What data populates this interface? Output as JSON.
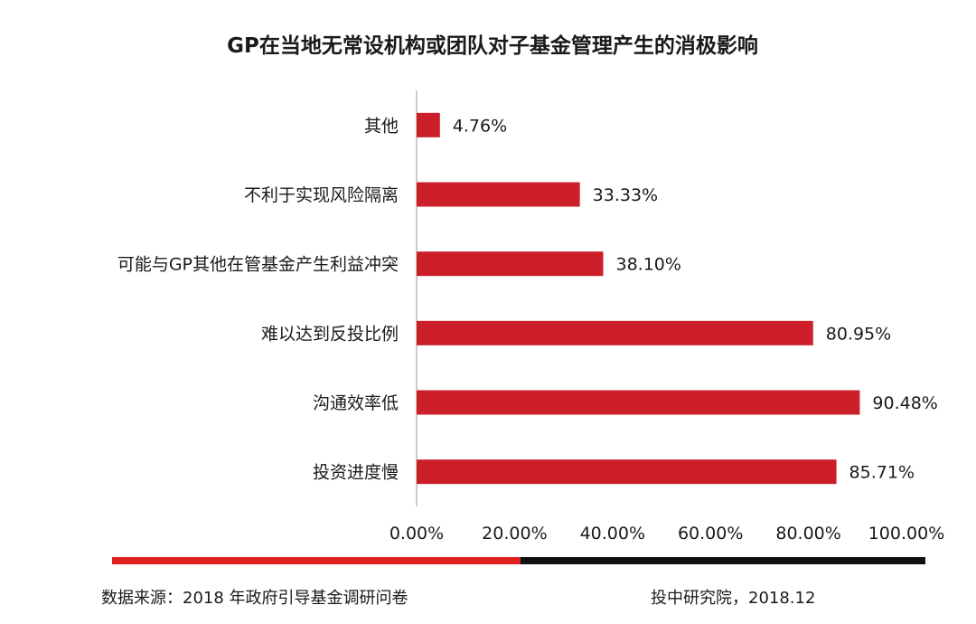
{
  "chart_data": {
    "type": "bar",
    "orientation": "horizontal",
    "title": "GP在当地无常设机构或团队对子基金管理产生的消极影响",
    "categories": [
      "其他",
      "不利于实现风险隔离",
      "可能与GP其他在管基金产生利益冲突",
      "难以达到反投比例",
      "沟通效率低",
      "投资进度慢"
    ],
    "values": [
      4.76,
      33.33,
      38.1,
      80.95,
      90.48,
      85.71
    ],
    "value_labels": [
      "4.76%",
      "33.33%",
      "38.10%",
      "80.95%",
      "90.48%",
      "85.71%"
    ],
    "xlim": [
      0,
      100
    ],
    "x_ticks": [
      "0.00%",
      "20.00%",
      "40.00%",
      "60.00%",
      "80.00%",
      "100.00%"
    ],
    "grid": false,
    "bar_color": "#cc1f2a"
  },
  "footer": {
    "source": "数据来源：2018 年政府引导基金调研问卷",
    "credit": "投中研究院，2018.12"
  },
  "colors": {
    "divider_red": "#e02020",
    "divider_black": "#111111",
    "axis_line": "#bbbbbb"
  }
}
